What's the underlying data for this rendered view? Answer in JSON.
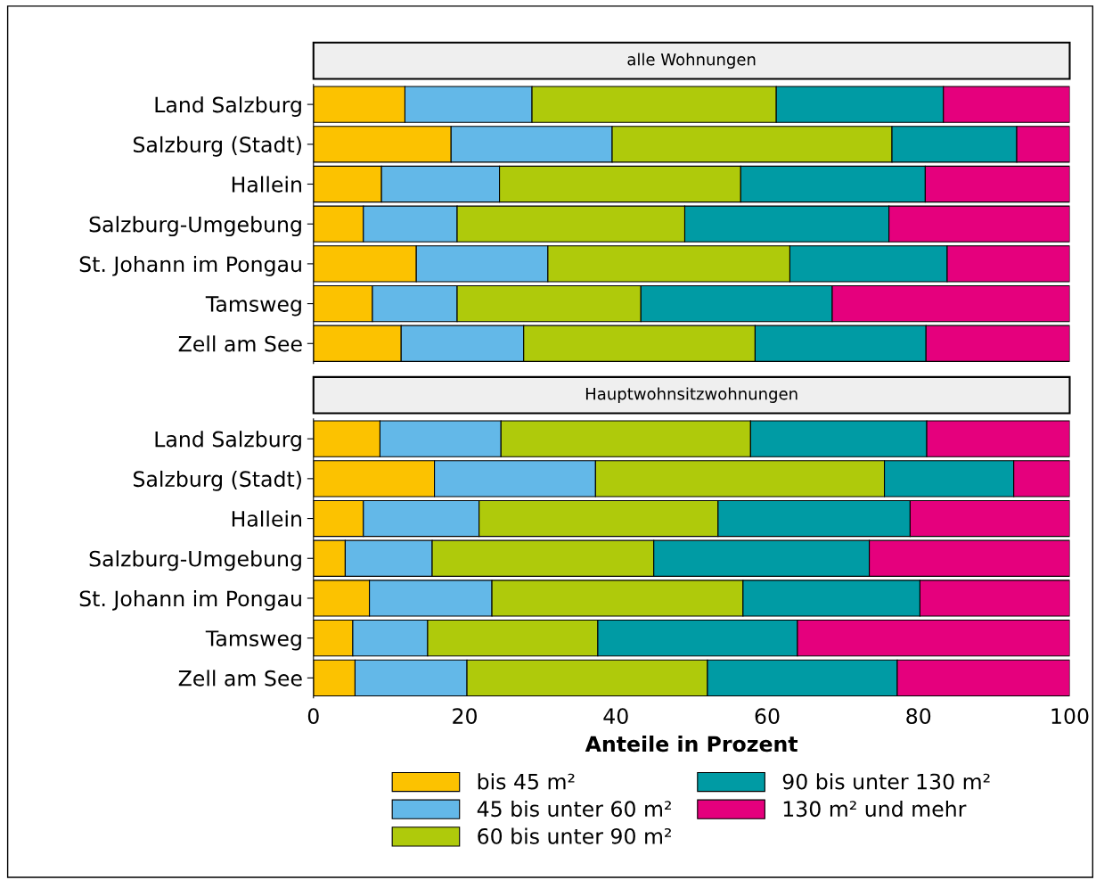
{
  "chart_data": [
    {
      "type": "bar",
      "orientation": "horizontal",
      "stacked": true,
      "title": "alle Wohnungen",
      "categories": [
        "Land Salzburg",
        "Salzburg (Stadt)",
        "Hallein",
        "Salzburg-Umgebung",
        "St. Johann im Pongau",
        "Tamsweg",
        "Zell am See"
      ],
      "xlim": [
        0,
        100
      ],
      "xticks": [
        0,
        20,
        40,
        60,
        80,
        100
      ],
      "tick_labels": "y",
      "grid": false,
      "legend": false,
      "series": [
        {
          "color": "#fcc200",
          "values": [
            12.1,
            18.2,
            9.0,
            6.6,
            13.6,
            7.8,
            11.6
          ]
        },
        {
          "color": "#63b8e8",
          "values": [
            16.8,
            21.3,
            15.6,
            12.4,
            17.4,
            11.2,
            16.2
          ]
        },
        {
          "color": "#afca0b",
          "values": [
            32.3,
            37.0,
            31.9,
            30.1,
            32.0,
            24.3,
            30.6
          ]
        },
        {
          "color": "#009ba4",
          "values": [
            22.1,
            16.5,
            24.4,
            27.0,
            20.8,
            25.3,
            22.6
          ]
        },
        {
          "color": "#e5007d",
          "values": [
            16.7,
            7.0,
            19.1,
            23.9,
            16.2,
            31.4,
            19.0
          ]
        }
      ]
    },
    {
      "type": "bar",
      "orientation": "horizontal",
      "stacked": true,
      "title": "Hauptwohnsitzwohnungen",
      "xlabel": "Anteile in Prozent",
      "categories": [
        "Land Salzburg",
        "Salzburg (Stadt)",
        "Hallein",
        "Salzburg-Umgebung",
        "St. Johann im Pongau",
        "Tamsweg",
        "Zell am See"
      ],
      "xlim": [
        0,
        100
      ],
      "xticks": [
        0,
        20,
        40,
        60,
        80,
        100
      ],
      "grid": false,
      "legend": "bottom",
      "series": [
        {
          "name": "bis 45 m²",
          "color": "#fcc200",
          "values": [
            8.8,
            16.0,
            6.6,
            4.2,
            7.4,
            5.2,
            5.5
          ]
        },
        {
          "name": "45 bis unter 60 m²",
          "color": "#63b8e8",
          "values": [
            16.0,
            21.3,
            15.3,
            11.5,
            16.2,
            9.9,
            14.8
          ]
        },
        {
          "name": "60 bis unter 90 m²",
          "color": "#afca0b",
          "values": [
            33.0,
            38.2,
            31.6,
            29.3,
            33.2,
            22.5,
            31.8
          ]
        },
        {
          "name": "90 bis unter 130 m²",
          "color": "#009ba4",
          "values": [
            23.3,
            17.1,
            25.4,
            28.5,
            23.4,
            26.4,
            25.1
          ]
        },
        {
          "name": "130 m² und mehr",
          "color": "#e5007d",
          "values": [
            18.9,
            7.4,
            21.1,
            26.5,
            19.8,
            36.0,
            22.8
          ]
        }
      ]
    }
  ]
}
